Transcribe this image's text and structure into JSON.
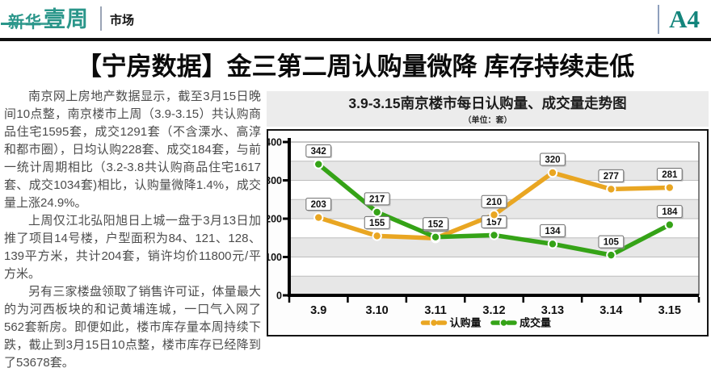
{
  "header": {
    "logo_text_1": "新华",
    "logo_text_2": "壹周",
    "section_label": "市场",
    "page_number": "A4",
    "brand_color": "#2a968a"
  },
  "headline": "【宁房数据】金三第二周认购量微降 库存持续走低",
  "article": {
    "paragraphs": [
      "南京网上房地产数据显示，截至3月15日晚间10点整，南京楼市上周（3.9-3.15）共认购商品住宅1595套，成交1291套（不含溧水、高淳和都市圈），日均认购228套、成交184套，与前一统计周期相比（3.2-3.8共认购商品住宅1617套、成交1034套)相比，认购量微降1.4%，成交量上涨24.9%。",
      "上周仅江北弘阳旭日上城一盘于3月13日加推了项目14号楼，户型面积为84、121、128、139平方米，共计204套，销许均价11800元/平方米。",
      "另有三家楼盘领取了销售许可证，体量最大的为河西板块的和记黄埔连城，一口气入网了562套新房。即便如此，楼市库存量本周持续下跌，截止到3月15日10点整，楼市库存已经降到了53678套。"
    ]
  },
  "chart_data": {
    "type": "line",
    "title": "3.9-3.15南京楼市每日认购量、成交量走势图",
    "subtitle": "（单位：套）",
    "categories": [
      "3.9",
      "3.10",
      "3.11",
      "3.12",
      "3.13",
      "3.14",
      "3.15"
    ],
    "series": [
      {
        "name": "认购量",
        "color": "#E9A622",
        "values": [
          203,
          155,
          149,
          210,
          320,
          277,
          281
        ]
      },
      {
        "name": "成交量",
        "color": "#35A317",
        "values": [
          342,
          217,
          152,
          157,
          134,
          105,
          184
        ]
      }
    ],
    "ylim": [
      0,
      400
    ],
    "y_ticks": [
      0,
      100,
      200,
      300,
      400
    ],
    "grid_interval": 50,
    "grid": true,
    "legend_position": "bottom",
    "band_colors": [
      "#e7e7e7",
      "#ffffff"
    ],
    "data_labels": true
  }
}
